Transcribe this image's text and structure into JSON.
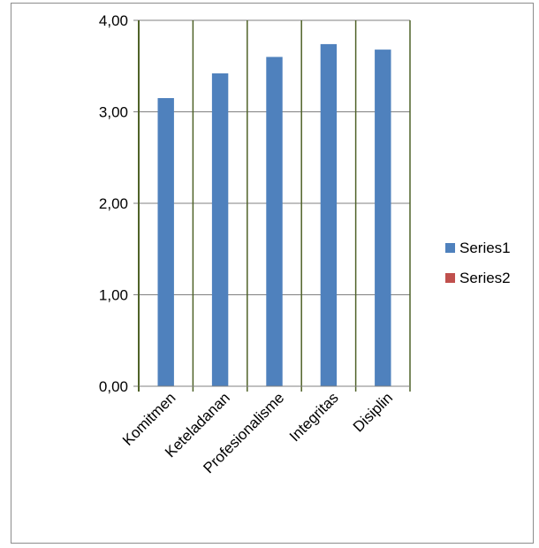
{
  "chart_data": {
    "type": "bar",
    "title": "",
    "xlabel": "",
    "ylabel": "",
    "categories": [
      "Komitmen",
      "Keteladanan",
      "Profesionalisme",
      "Integritas",
      "Disiplin"
    ],
    "series": [
      {
        "name": "Series1",
        "color": "#4f81bd",
        "values": [
          3.15,
          3.42,
          3.6,
          3.74,
          3.68
        ]
      },
      {
        "name": "Series2",
        "color": "#c0504d",
        "values": [
          null,
          null,
          null,
          null,
          null
        ]
      }
    ],
    "ylim": [
      0,
      4
    ],
    "yticks": [
      0,
      1,
      2,
      3,
      4
    ],
    "ytick_labels": [
      "0,00",
      "1,00",
      "2,00",
      "3,00",
      "4,00"
    ],
    "grid": {
      "horizontal": true,
      "vertical": true,
      "horizontal_color": "#808080",
      "vertical_color": "#4f6228"
    },
    "legend": {
      "position": "right"
    }
  }
}
